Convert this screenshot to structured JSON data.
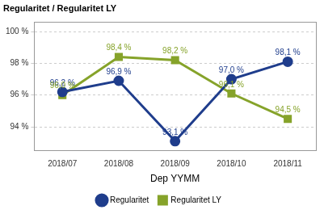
{
  "chart_data": {
    "type": "line",
    "title": "Regularitet / Regularitet LY",
    "x_label": "Dep YYMM",
    "categories": [
      "2018/07",
      "2018/08",
      "2018/09",
      "2018/10",
      "2018/11"
    ],
    "series": [
      {
        "name": "Regularitet",
        "color": "#1f3d8c",
        "marker": "circle",
        "line_style": "solid",
        "values": [
          96.2,
          96.9,
          93.1,
          97.0,
          98.1
        ],
        "value_labels": [
          "96,2 %",
          "96,9 %",
          "93,1 %",
          "97,0 %",
          "98,1 %"
        ]
      },
      {
        "name": "Regularitet LY",
        "color": "#86a32a",
        "marker": "square",
        "line_style": "solid",
        "values": [
          96.0,
          98.4,
          98.2,
          96.1,
          94.5
        ],
        "value_labels": [
          "96,0 %",
          "98,4 %",
          "98,2 %",
          "96,1 %",
          "94,5 %"
        ]
      }
    ],
    "ylim": [
      92.5,
      100.6
    ],
    "yticks": [
      {
        "value": 94,
        "label": "94 %"
      },
      {
        "value": 96,
        "label": "96 %"
      },
      {
        "value": 98,
        "label": "98 %"
      },
      {
        "value": 100,
        "label": "100 %"
      }
    ],
    "grid": true,
    "legend": "bottom",
    "data_labels": true
  }
}
